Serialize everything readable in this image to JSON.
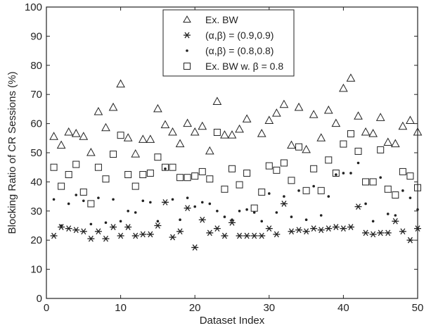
{
  "chart_data": {
    "type": "scatter",
    "title": "",
    "xlabel": "Dataset Index",
    "ylabel": "Blocking Ratio of CR Sessions (%)",
    "xlim": [
      0,
      50
    ],
    "ylim": [
      0,
      100
    ],
    "xticks": [
      0,
      10,
      20,
      30,
      40,
      50
    ],
    "yticks": [
      0,
      10,
      20,
      30,
      40,
      50,
      60,
      70,
      80,
      90,
      100
    ],
    "grid": false,
    "legend_position": "top-center",
    "x": [
      1,
      2,
      3,
      4,
      5,
      6,
      7,
      8,
      9,
      10,
      11,
      12,
      13,
      14,
      15,
      16,
      17,
      18,
      19,
      20,
      21,
      22,
      23,
      24,
      25,
      26,
      27,
      28,
      29,
      30,
      31,
      32,
      33,
      34,
      35,
      36,
      37,
      38,
      39,
      40,
      41,
      42,
      43,
      44,
      45,
      46,
      47,
      48,
      49,
      50
    ],
    "series": [
      {
        "name": "Ex. BW",
        "marker": "triangle",
        "values": [
          55.5,
          52.5,
          57,
          56.5,
          55.5,
          50,
          64,
          58.5,
          65.5,
          73.5,
          55,
          49.5,
          54.5,
          54.5,
          65,
          59.5,
          57,
          53,
          60,
          57,
          59,
          50.5,
          67.5,
          56,
          56,
          58,
          61.5,
          null,
          56.5,
          61,
          63.5,
          66.5,
          52.5,
          65.5,
          51,
          63,
          55,
          64.5,
          60,
          72,
          75.5,
          62.5,
          57,
          56.5,
          62,
          53.5,
          53,
          59,
          61,
          57
        ]
      },
      {
        "name": "(α,β) = (0.9,0.9)",
        "marker": "asterisk",
        "values": [
          21.5,
          24.5,
          24,
          23.5,
          23,
          20.5,
          23,
          20.5,
          24.5,
          21.5,
          24.5,
          21.5,
          22,
          22,
          25,
          33,
          21,
          23,
          31,
          17.5,
          27,
          22.5,
          24,
          21.5,
          26,
          21.5,
          21.5,
          21.5,
          21.5,
          24,
          22,
          32.5,
          23,
          23.5,
          23,
          24,
          23.5,
          24,
          24.5,
          24,
          24.5,
          31.5,
          22.5,
          22,
          22.5,
          22.5,
          26.5,
          23,
          20,
          24
        ]
      },
      {
        "name": "(α,β) = (0.8,0.8)",
        "marker": "dot",
        "values": [
          34,
          25,
          32.5,
          35.5,
          33.5,
          25.5,
          34.5,
          26,
          34,
          26.5,
          30,
          29.5,
          33.5,
          33,
          26.5,
          44.5,
          34,
          27,
          34.5,
          31.5,
          33,
          32.5,
          30,
          28,
          27,
          30,
          30.5,
          29.5,
          26.5,
          36,
          29.5,
          35,
          28,
          37,
          27,
          38.5,
          28.5,
          35,
          42.5,
          43,
          43,
          46.5,
          32.5,
          26.5,
          41.5,
          29,
          28.5,
          37,
          34.5,
          30.5
        ]
      },
      {
        "name": "Ex. BW w. β = 0.8",
        "marker": "square",
        "values": [
          45,
          38.5,
          42.5,
          46,
          36.5,
          32.5,
          45,
          41,
          49.5,
          56,
          42.5,
          38.5,
          42.5,
          43,
          48.5,
          45,
          45,
          41.5,
          41.5,
          42,
          43.5,
          41,
          57,
          37.5,
          44.5,
          39,
          43,
          31,
          36.5,
          45.5,
          44,
          46.5,
          40.5,
          52,
          37,
          44.5,
          37,
          47.5,
          43,
          53,
          56.5,
          50.5,
          40,
          40,
          51,
          37.5,
          35.5,
          43.5,
          42,
          38
        ]
      }
    ]
  }
}
